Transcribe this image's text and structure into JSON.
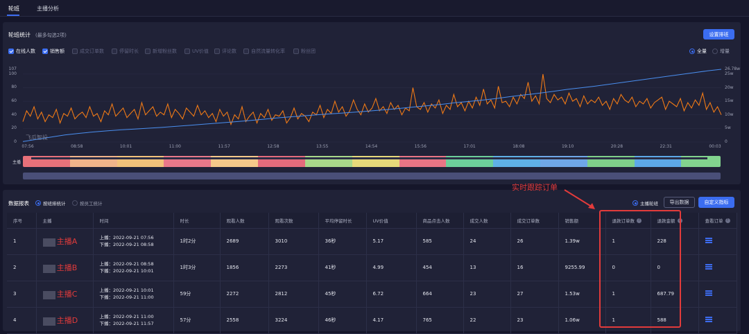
{
  "tabs": [
    "轮班",
    "主播分析"
  ],
  "section1": {
    "title": "轮班统计",
    "hint": "(最多勾选2项)",
    "settings_button": "设置排班",
    "metrics": [
      {
        "label": "在线人数",
        "checked": true
      },
      {
        "label": "销售额",
        "checked": true
      },
      {
        "label": "成交订单数",
        "checked": false
      },
      {
        "label": "停留时长",
        "checked": false
      },
      {
        "label": "新增粉丝数",
        "checked": false
      },
      {
        "label": "UV价值",
        "checked": false
      },
      {
        "label": "评论数",
        "checked": false
      },
      {
        "label": "自然流量转化率",
        "checked": false
      },
      {
        "label": "粉丝团",
        "checked": false
      }
    ],
    "mode_options": [
      {
        "label": "全量",
        "selected": true
      },
      {
        "label": "增量",
        "selected": false
      }
    ],
    "watermark": "飞瓜智投",
    "anchor_row_label": "主播"
  },
  "chart_data": {
    "type": "line",
    "x_ticks": [
      "07:56",
      "08:58",
      "10:01",
      "11:00",
      "11:57",
      "12:58",
      "13:55",
      "14:54",
      "15:56",
      "17:01",
      "18:08",
      "19:10",
      "20:28",
      "22:31",
      "00:03"
    ],
    "y_left_ticks": [
      "0",
      "20",
      "40",
      "60",
      "80",
      "100",
      "107"
    ],
    "y_right_ticks": [
      "0",
      "5w",
      "10w",
      "15w",
      "20w",
      "25w",
      "26.78w"
    ],
    "ylim_left": [
      0,
      107
    ],
    "ylim_right": [
      0,
      26.78
    ],
    "series": [
      {
        "axis": "left",
        "color": "#f07a16",
        "values": [
          30,
          46,
          38,
          52,
          34,
          44,
          30,
          40,
          36,
          48,
          28,
          42,
          38,
          50,
          34,
          40,
          44,
          36,
          52,
          38,
          42,
          30,
          46,
          40,
          56,
          38,
          44,
          50,
          36,
          42,
          48,
          34,
          58,
          40,
          46,
          52,
          38,
          44,
          40,
          56,
          36,
          48,
          42,
          34,
          50,
          44,
          38,
          54,
          40,
          46,
          36,
          42,
          30,
          48,
          38,
          44,
          26,
          40,
          34,
          52,
          30,
          38,
          44,
          28,
          42,
          36,
          48,
          32,
          40,
          38,
          46,
          28,
          36,
          50,
          34,
          42,
          38,
          30,
          44,
          40,
          54,
          36,
          48,
          42,
          60,
          44,
          52,
          38,
          46,
          62,
          48,
          40,
          56,
          44,
          50,
          64,
          46,
          52,
          42,
          58,
          48,
          54,
          40,
          50,
          46,
          80,
          52,
          48,
          58,
          44,
          56,
          50,
          62,
          42,
          54,
          48,
          70,
          52,
          58,
          46,
          60,
          50,
          66,
          54,
          78,
          56,
          62,
          50,
          82,
          58,
          60,
          52,
          66,
          56,
          70,
          64,
          88,
          60,
          68,
          56,
          100,
          64,
          58,
          70,
          62,
          66,
          56,
          72,
          60,
          64,
          52,
          68,
          56,
          62,
          58,
          66,
          54,
          60,
          48,
          64,
          56,
          70,
          62,
          58,
          66,
          52,
          60,
          56,
          64,
          50,
          58,
          62,
          66,
          48,
          60,
          56,
          52,
          64,
          46,
          58,
          50,
          62,
          54,
          72,
          48,
          58,
          44,
          52,
          40
        ]
      },
      {
        "axis": "right",
        "color": "#4a8ff0",
        "values": [
          0.2,
          1,
          1.8,
          2.6,
          3.2,
          3.7,
          4.1,
          4.5,
          4.8,
          5.1,
          5.4,
          5.8,
          6.2,
          6.6,
          7,
          7.4,
          7.8,
          8.3,
          8.8,
          9.2,
          9.6,
          10,
          10.4,
          10.7,
          11.1,
          11.5,
          11.9,
          12.4,
          12.9,
          13.4,
          13.9,
          14.5,
          15,
          15.5,
          16.1,
          16.8,
          17.4,
          18,
          18.7,
          19.4,
          20,
          20.6,
          21.3,
          22,
          22.7,
          23.4,
          24.1,
          24.8,
          25.5,
          26.2,
          26.78
        ]
      }
    ]
  },
  "section2": {
    "title": "数据报表",
    "radio_options": [
      {
        "label": "按班排统计",
        "selected": true
      },
      {
        "label": "按员工统计",
        "selected": false
      }
    ],
    "right_radio": {
      "label": "主播轮班",
      "selected": true
    },
    "export_button": "导出数据",
    "custom_button": "自定义指标",
    "annotation": "实时跟踪订单",
    "columns": [
      "序号",
      "主播",
      "时间",
      "时长",
      "观看人数",
      "观看次数",
      "平均停留时长",
      "UV价值",
      "商品点击人数",
      "成交人数",
      "成交订单数",
      "销售额",
      "退款订单数",
      "退款金额",
      "查看订单"
    ],
    "rows": [
      {
        "index": "1",
        "anchor": "主播A",
        "start": "上播：2022-09-21 07:56",
        "end": "下播：2022-09-21 08:58",
        "duration": "1时2分",
        "viewers": "2689",
        "views": "3010",
        "avg_stay": "36秒",
        "uv": "5.17",
        "clicks": "585",
        "buyers": "24",
        "orders": "26",
        "sales": "1.39w",
        "refund_orders": "1",
        "refund_amount": "228"
      },
      {
        "index": "2",
        "anchor": "主播B",
        "start": "上播：2022-09-21 08:58",
        "end": "下播：2022-09-21 10:01",
        "duration": "1时3分",
        "viewers": "1856",
        "views": "2273",
        "avg_stay": "41秒",
        "uv": "4.99",
        "clicks": "454",
        "buyers": "13",
        "orders": "16",
        "sales": "9255.99",
        "refund_orders": "0",
        "refund_amount": "0"
      },
      {
        "index": "3",
        "anchor": "主播C",
        "start": "上播：2022-09-21 10:01",
        "end": "下播：2022-09-21 11:00",
        "duration": "59分",
        "viewers": "2272",
        "views": "2812",
        "avg_stay": "45秒",
        "uv": "6.72",
        "clicks": "664",
        "buyers": "23",
        "orders": "27",
        "sales": "1.53w",
        "refund_orders": "1",
        "refund_amount": "687.79"
      },
      {
        "index": "4",
        "anchor": "主播D",
        "start": "上播：2022-09-21 11:00",
        "end": "下播：2022-09-21 11:57",
        "duration": "57分",
        "viewers": "2558",
        "views": "3224",
        "avg_stay": "46秒",
        "uv": "4.17",
        "clicks": "765",
        "buyers": "22",
        "orders": "23",
        "sales": "1.06w",
        "refund_orders": "1",
        "refund_amount": "588"
      }
    ]
  }
}
